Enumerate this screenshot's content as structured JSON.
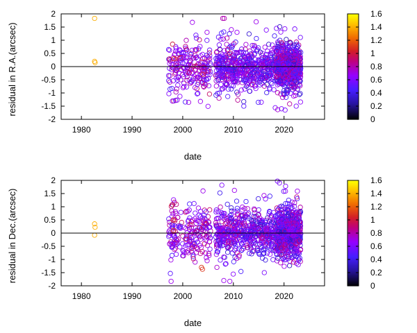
{
  "chart_data": [
    {
      "type": "scatter",
      "xlabel": "date",
      "ylabel": "residual in R.A.(arcsec)",
      "xlim": [
        1976,
        2028
      ],
      "ylim": [
        -2,
        2
      ],
      "xticks": [
        1980,
        1990,
        2000,
        2010,
        2020
      ],
      "yticks": [
        -2,
        -1.5,
        -1,
        -0.5,
        0,
        0.5,
        1,
        1.5,
        2
      ],
      "marker": "open-circle",
      "zero_line": true,
      "colorbar": {
        "min": 0,
        "max": 1.6,
        "ticks": [
          0,
          0.2,
          0.4,
          0.6,
          0.8,
          1,
          1.2,
          1.4,
          1.6
        ]
      },
      "points": [
        [
          1982.6,
          1.83,
          1.4
        ],
        [
          1982.6,
          0.2,
          1.4
        ],
        [
          1982.7,
          0.15,
          1.4
        ],
        [
          1998.0,
          0.85,
          1.0
        ],
        [
          1998.3,
          0.3,
          1.1
        ],
        [
          2004.0,
          -0.3,
          1.0
        ],
        [
          2007.9,
          1.83,
          0.8
        ],
        [
          2008.2,
          1.83,
          0.8
        ],
        [
          2014.5,
          1.7,
          0.7
        ],
        [
          2001.9,
          1.68,
          0.7
        ],
        [
          2004.8,
          1.3,
          0.7
        ],
        [
          2019.5,
          -1.6,
          0.6
        ],
        [
          2020.2,
          -1.65,
          0.6
        ],
        [
          2022.4,
          -1.5,
          0.6
        ],
        [
          2003.5,
          -1.32,
          0.7
        ],
        [
          1998.9,
          -1.27,
          0.7
        ],
        [
          2015.5,
          -1.35,
          0.6
        ],
        [
          2018.5,
          1.45,
          0.6
        ],
        [
          2009.6,
          1.4,
          0.7
        ]
      ],
      "clusters": [
        {
          "x": [
            1997.2,
            2000.3
          ],
          "n": 80,
          "spread": 0.6,
          "cmin": 0.45,
          "cmax": 0.95
        },
        {
          "x": [
            2000.5,
            2005.5
          ],
          "n": 140,
          "spread": 0.6,
          "cmin": 0.45,
          "cmax": 0.95
        },
        {
          "x": [
            2006.5,
            2012.0
          ],
          "n": 260,
          "spread": 0.5,
          "cmin": 0.35,
          "cmax": 0.9
        },
        {
          "x": [
            2012.0,
            2018.5
          ],
          "n": 300,
          "spread": 0.5,
          "cmin": 0.3,
          "cmax": 0.85
        },
        {
          "x": [
            2018.5,
            2023.3
          ],
          "n": 700,
          "spread": 0.5,
          "cmin": 0.3,
          "cmax": 0.9
        }
      ]
    },
    {
      "type": "scatter",
      "xlabel": "date",
      "ylabel": "residual in Dec.(arcsec)",
      "xlim": [
        1976,
        2028
      ],
      "ylim": [
        -2,
        2
      ],
      "xticks": [
        1980,
        1990,
        2000,
        2010,
        2020
      ],
      "yticks": [
        -2,
        -1.5,
        -1,
        -0.5,
        0,
        0.5,
        1,
        1.5,
        2
      ],
      "marker": "open-circle",
      "zero_line": true,
      "colorbar": {
        "min": 0,
        "max": 1.6,
        "ticks": [
          0,
          0.2,
          0.4,
          0.6,
          0.8,
          1,
          1.2,
          1.4,
          1.6
        ]
      },
      "points": [
        [
          1982.6,
          0.35,
          1.4
        ],
        [
          1982.7,
          0.22,
          1.4
        ],
        [
          1982.6,
          -0.08,
          1.4
        ],
        [
          1997.9,
          1.07,
          1.0
        ],
        [
          1998.1,
          0.48,
          1.1
        ],
        [
          1998.2,
          0.1,
          1.2
        ],
        [
          2003.7,
          -1.3,
          1.1
        ],
        [
          2003.9,
          -1.37,
          1.1
        ],
        [
          2004.0,
          1.6,
          0.7
        ],
        [
          2018.7,
          1.97,
          0.6
        ],
        [
          2019.1,
          1.9,
          0.6
        ],
        [
          2020.3,
          1.78,
          0.6
        ],
        [
          2008.1,
          -1.8,
          0.7
        ],
        [
          2009.3,
          -1.83,
          0.7
        ],
        [
          2010.2,
          1.62,
          0.7
        ],
        [
          2022.8,
          -1.2,
          0.6
        ],
        [
          1997.7,
          -1.83,
          0.7
        ],
        [
          2016.1,
          -1.5,
          0.6
        ]
      ],
      "clusters": [
        {
          "x": [
            1997.2,
            2000.3
          ],
          "n": 80,
          "spread": 0.65,
          "cmin": 0.45,
          "cmax": 0.95
        },
        {
          "x": [
            2000.5,
            2005.5
          ],
          "n": 140,
          "spread": 0.65,
          "cmin": 0.45,
          "cmax": 0.95
        },
        {
          "x": [
            2006.5,
            2012.0
          ],
          "n": 260,
          "spread": 0.55,
          "cmin": 0.35,
          "cmax": 0.9
        },
        {
          "x": [
            2012.0,
            2018.5
          ],
          "n": 300,
          "spread": 0.5,
          "cmin": 0.3,
          "cmax": 0.85
        },
        {
          "x": [
            2018.5,
            2023.3
          ],
          "n": 700,
          "spread": 0.55,
          "cmin": 0.3,
          "cmax": 0.9
        }
      ]
    }
  ]
}
